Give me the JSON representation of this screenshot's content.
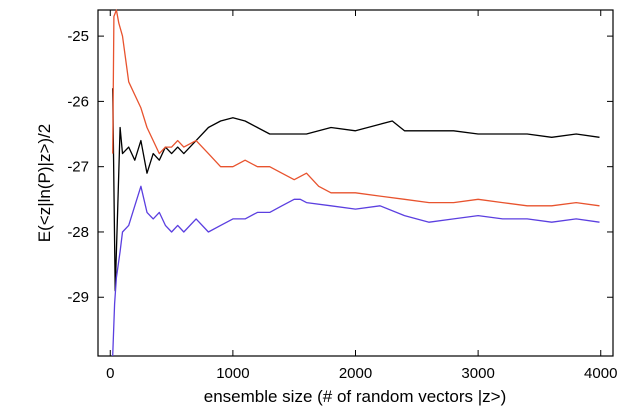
{
  "chart_data": {
    "type": "line",
    "title": "",
    "xlabel": "ensemble size (# of random vectors |z>)",
    "ylabel": "E(<z|ln(P)|z>)/2",
    "xlim": [
      -100,
      4100
    ],
    "ylim": [
      -29.9,
      -24.6
    ],
    "x_ticks": [
      0,
      1000,
      2000,
      3000,
      4000
    ],
    "y_ticks": [
      -29,
      -28,
      -27,
      -26,
      -25
    ],
    "x_tick_labels": [
      "0",
      "1000",
      "2000",
      "3000",
      "4000"
    ],
    "y_tick_labels": [
      "-29",
      "-28",
      "-27",
      "-26",
      "-25"
    ],
    "grid": false,
    "legend": "none",
    "series": [
      {
        "color": "#000000",
        "x": [
          20,
          40,
          60,
          80,
          100,
          150,
          200,
          250,
          300,
          350,
          400,
          450,
          500,
          550,
          600,
          700,
          800,
          900,
          1000,
          1100,
          1200,
          1300,
          1400,
          1600,
          1800,
          2000,
          2200,
          2300,
          2400,
          2600,
          2800,
          3000,
          3200,
          3400,
          3600,
          3800,
          3990
        ],
        "y": [
          -25.8,
          -28.9,
          -27.7,
          -26.4,
          -26.8,
          -26.7,
          -26.9,
          -26.6,
          -27.1,
          -26.8,
          -26.9,
          -26.7,
          -26.8,
          -26.7,
          -26.8,
          -26.6,
          -26.4,
          -26.3,
          -26.25,
          -26.3,
          -26.4,
          -26.5,
          -26.5,
          -26.5,
          -26.4,
          -26.45,
          -26.35,
          -26.3,
          -26.45,
          -26.45,
          -26.45,
          -26.5,
          -26.5,
          -26.5,
          -26.55,
          -26.5,
          -26.55
        ]
      },
      {
        "color": "#e8532e",
        "x": [
          20,
          30,
          50,
          70,
          100,
          150,
          200,
          250,
          300,
          350,
          400,
          450,
          500,
          550,
          600,
          700,
          800,
          900,
          1000,
          1100,
          1200,
          1300,
          1400,
          1500,
          1600,
          1700,
          1800,
          2000,
          2200,
          2400,
          2600,
          2800,
          3000,
          3200,
          3400,
          3600,
          3800,
          3990
        ],
        "y": [
          -26.8,
          -24.7,
          -24.5,
          -24.8,
          -25.0,
          -25.7,
          -25.9,
          -26.1,
          -26.4,
          -26.6,
          -26.8,
          -26.7,
          -26.7,
          -26.6,
          -26.7,
          -26.6,
          -26.8,
          -27.0,
          -27.0,
          -26.9,
          -27.0,
          -27.0,
          -27.1,
          -27.2,
          -27.1,
          -27.3,
          -27.4,
          -27.4,
          -27.45,
          -27.5,
          -27.55,
          -27.55,
          -27.5,
          -27.55,
          -27.6,
          -27.6,
          -27.55,
          -27.6
        ]
      },
      {
        "color": "#5b3fe0",
        "x": [
          20,
          35,
          50,
          80,
          100,
          150,
          200,
          250,
          300,
          350,
          400,
          450,
          500,
          550,
          600,
          700,
          800,
          900,
          1000,
          1100,
          1200,
          1300,
          1400,
          1500,
          1550,
          1600,
          1800,
          2000,
          2200,
          2400,
          2600,
          2800,
          3000,
          3200,
          3400,
          3600,
          3800,
          3990
        ],
        "y": [
          -29.9,
          -29.1,
          -28.7,
          -28.3,
          -28.0,
          -27.9,
          -27.6,
          -27.3,
          -27.7,
          -27.8,
          -27.7,
          -27.9,
          -28.0,
          -27.9,
          -28.0,
          -27.8,
          -28.0,
          -27.9,
          -27.8,
          -27.8,
          -27.7,
          -27.7,
          -27.6,
          -27.5,
          -27.5,
          -27.55,
          -27.6,
          -27.65,
          -27.6,
          -27.75,
          -27.85,
          -27.8,
          -27.75,
          -27.8,
          -27.8,
          -27.85,
          -27.8,
          -27.85
        ]
      }
    ]
  }
}
